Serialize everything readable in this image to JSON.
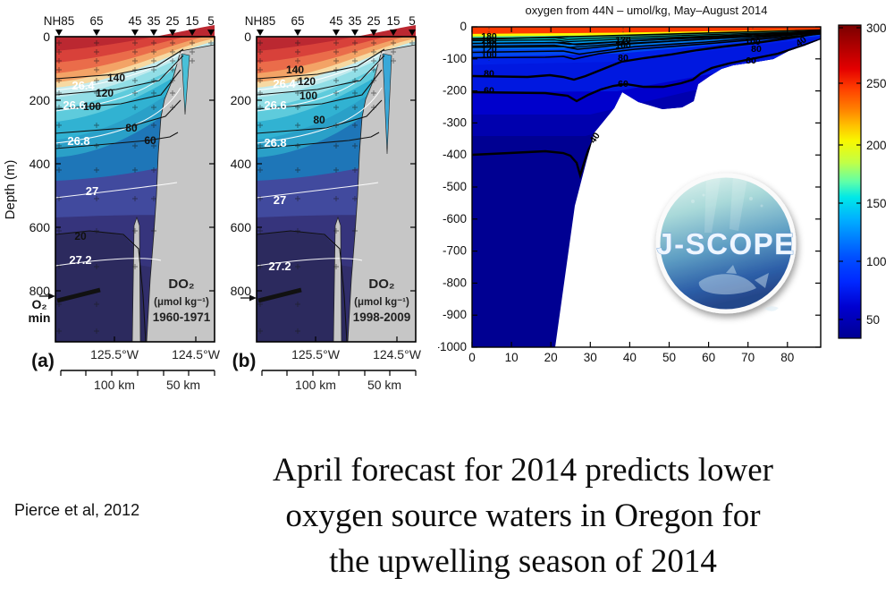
{
  "caption": {
    "attribution": "Pierce et al, 2012",
    "lines": [
      "April forecast for 2014 predicts lower",
      "oxygen source waters in Oregon for",
      "the upwelling season of 2014"
    ]
  },
  "colors": {
    "bathymetry_gray": "#c6c6c6",
    "deep_ocean_navy": "#000092",
    "colormap": "jet"
  },
  "chart_data": [
    {
      "id": "panel_a",
      "type": "contour-section",
      "panel_label": "(a)",
      "ylabel": "Depth (m)",
      "stations": [
        "NH85",
        "65",
        "45",
        "35",
        "25",
        "15",
        "5"
      ],
      "depth_ticks_m": [
        0,
        200,
        400,
        600,
        800
      ],
      "depth_range_m": [
        0,
        960
      ],
      "longitude_ticks": [
        "125.5°W",
        "124.5°W"
      ],
      "distance_scale": [
        "100 km",
        "50 km"
      ],
      "density_contour_labels": [
        "26.4",
        "26.6",
        "26.8",
        "27",
        "27.2"
      ],
      "oxygen_contour_labels": [
        "140",
        "120",
        "100",
        "80",
        "60",
        "20"
      ],
      "legend": {
        "title": "DO₂",
        "units": "(μmol kg⁻¹)",
        "period": "1960-1971"
      },
      "o2_min_label": [
        "O₂",
        "min"
      ]
    },
    {
      "id": "panel_b",
      "type": "contour-section",
      "panel_label": "(b)",
      "ylabel": "",
      "stations": [
        "NH85",
        "65",
        "45",
        "35",
        "25",
        "15",
        "5"
      ],
      "depth_ticks_m": [
        0,
        200,
        400,
        600,
        800
      ],
      "depth_range_m": [
        0,
        960
      ],
      "longitude_ticks": [
        "125.5°W",
        "124.5°W"
      ],
      "distance_scale": [
        "100 km",
        "50 km"
      ],
      "density_contour_labels": [
        "26.4",
        "26.6",
        "26.8",
        "27",
        "27.2"
      ],
      "oxygen_contour_labels": [
        "140",
        "120",
        "100",
        "80"
      ],
      "legend": {
        "title": "DO₂",
        "units": "(μmol kg⁻¹)",
        "period": "1998-2009"
      },
      "o2_min_label": [
        "",
        ""
      ]
    },
    {
      "id": "forecast_section",
      "type": "filled-contour",
      "title": "oxygen from 44N – umol/kg, May–August 2014",
      "x_ticks": [
        0,
        10,
        20,
        30,
        40,
        50,
        60,
        70,
        80
      ],
      "x_range": [
        0,
        88
      ],
      "depth_ticks": [
        0,
        -100,
        -200,
        -300,
        -400,
        -500,
        -600,
        -700,
        -800,
        -900,
        -1000
      ],
      "contour_labels_left": [
        "180",
        "160",
        "140",
        "120",
        "100",
        "80",
        "60"
      ],
      "contour_labels_mid": [
        "120",
        "100",
        "80",
        "60"
      ],
      "contour_labels_right": [
        "100",
        "80",
        "60"
      ],
      "contour_labels_deep": [
        "40",
        "40"
      ],
      "colorbar": {
        "ticks": [
          300,
          250,
          200,
          150,
          100,
          50
        ],
        "range": [
          20,
          300
        ],
        "colormap": "jet"
      },
      "logo": {
        "text": "J-SCOPE"
      }
    }
  ]
}
